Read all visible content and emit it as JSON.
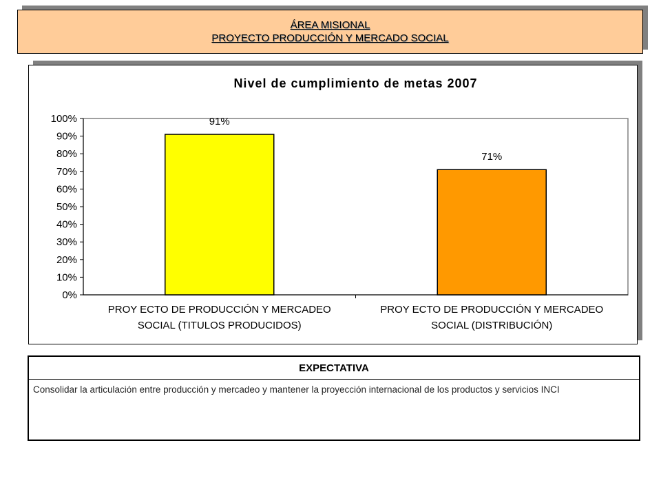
{
  "header": {
    "line1": "ÁREA MISIONAL",
    "line2": "PROYECTO PRODUCCIÓN Y MERCADO SOCIAL"
  },
  "chart_data": {
    "type": "bar",
    "title": "Nivel de cumplimiento de metas 2007",
    "categories": [
      [
        "PROY ECTO DE PRODUCCIÓN Y MERCADEO",
        "SOCIAL (TITULOS PRODUCIDOS)"
      ],
      [
        "PROY ECTO DE PRODUCCIÓN Y MERCADEO",
        "SOCIAL (DISTRIBUCIÓN)"
      ]
    ],
    "values": [
      91,
      71
    ],
    "data_labels": [
      "91%",
      "71%"
    ],
    "bar_colors": [
      "#ffff00",
      "#ff9900"
    ],
    "y_ticks": [
      "0%",
      "10%",
      "20%",
      "30%",
      "40%",
      "50%",
      "60%",
      "70%",
      "80%",
      "90%",
      "100%"
    ],
    "ylim": [
      0,
      100
    ],
    "grid": false,
    "legend": "none"
  },
  "expectativa": {
    "title": "EXPECTATIVA",
    "text": "Consolidar la articulación entre producción y mercadeo y mantener la proyección internacional de los productos y servicios INCI"
  }
}
